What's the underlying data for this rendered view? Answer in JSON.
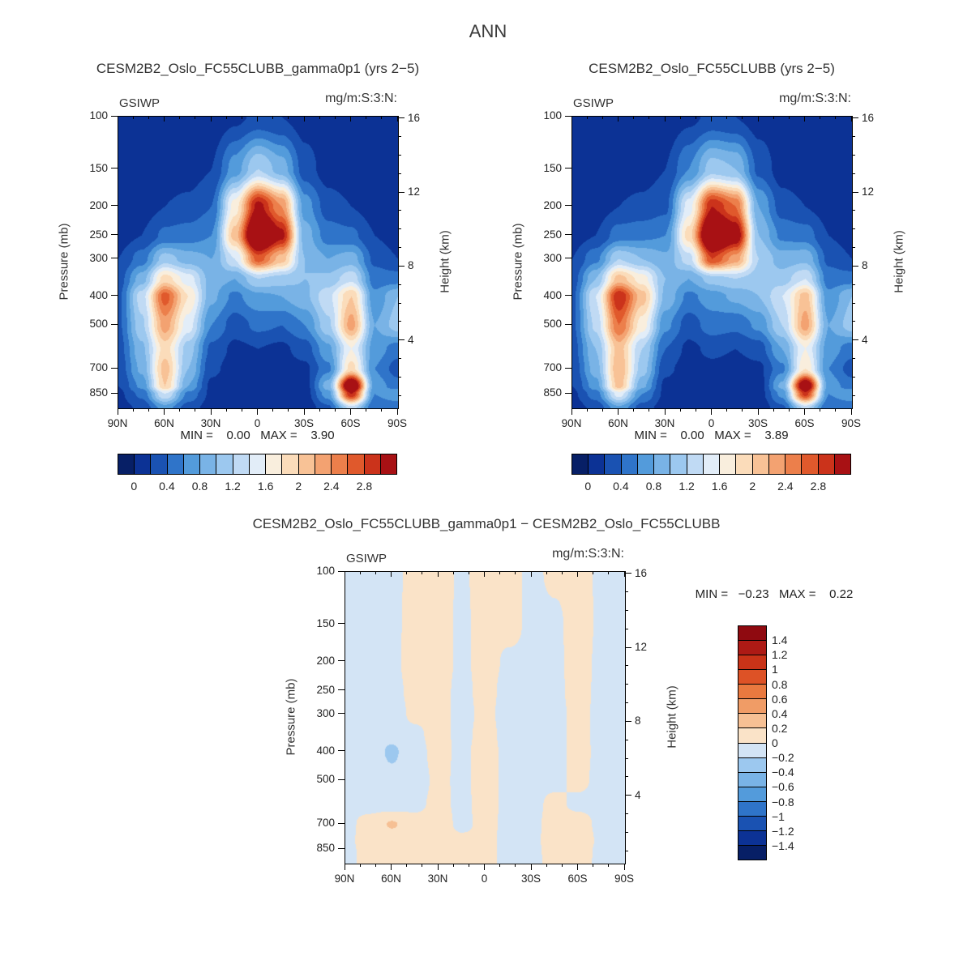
{
  "page": {
    "title": "ANN"
  },
  "palette_fill": [
    "#071f66",
    "#0c3295",
    "#1a52b2",
    "#2f74c9",
    "#539bdb",
    "#79b3e6",
    "#9cc8ef",
    "#c0daf4",
    "#e2edf8",
    "#f9eedd",
    "#fbdcba",
    "#f8c296",
    "#f3a271",
    "#ec7f4b",
    "#e0592c",
    "#cb331b",
    "#a81114"
  ],
  "palette_diff": [
    "#071f66",
    "#0c3295",
    "#1a52b2",
    "#2f74c9",
    "#539bdb",
    "#79b3e6",
    "#9cc8ef",
    "#d3e4f5",
    "#fae3c8",
    "#f6c094",
    "#f09c66",
    "#e9793f",
    "#dd5226",
    "#c93318",
    "#ad1a15",
    "#8f0a10"
  ],
  "panels": [
    {
      "title": "CESM2B2_Oslo_FC55CLUBB_gamma0p1 (yrs 2−5)",
      "variable": "GSIWP",
      "units": "mg/m:S:3:N:",
      "ylabel": "Pressure (mb)",
      "ylabel_right": "Height (km)",
      "minmax": "MIN =    0.00   MAX =    3.90",
      "colorbar_labels": [
        "0",
        "0.4",
        "0.8",
        "1.2",
        "1.6",
        "2",
        "2.4",
        "2.8"
      ]
    },
    {
      "title": "CESM2B2_Oslo_FC55CLUBB (yrs 2−5)",
      "variable": "GSIWP",
      "units": "mg/m:S:3:N:",
      "ylabel": "Pressure (mb)",
      "ylabel_right": "Height (km)",
      "minmax": "MIN =    0.00   MAX =    3.89",
      "colorbar_labels": [
        "0",
        "0.4",
        "0.8",
        "1.2",
        "1.6",
        "2",
        "2.4",
        "2.8"
      ]
    },
    {
      "title": "CESM2B2_Oslo_FC55CLUBB_gamma0p1 − CESM2B2_Oslo_FC55CLUBB",
      "variable": "GSIWP",
      "units": "mg/m:S:3:N:",
      "ylabel": "Pressure (mb)",
      "ylabel_right": "Height (km)",
      "minmax": "MIN =   −0.23   MAX =    0.22",
      "colorbar_labels_v": [
        "1.4",
        "1.2",
        "1",
        "0.8",
        "0.6",
        "0.4",
        "0.2",
        "0",
        "−0.2",
        "−0.4",
        "−0.6",
        "−0.8",
        "−1",
        "−1.2",
        "−1.4"
      ]
    }
  ],
  "axes": {
    "pressure_ticks": [
      {
        "v": 100,
        "l": "100"
      },
      {
        "v": 150,
        "l": "150"
      },
      {
        "v": 200,
        "l": "200"
      },
      {
        "v": 250,
        "l": "250"
      },
      {
        "v": 300,
        "l": "300"
      },
      {
        "v": 400,
        "l": "400"
      },
      {
        "v": 500,
        "l": "500"
      },
      {
        "v": 700,
        "l": "700"
      },
      {
        "v": 850,
        "l": "850"
      }
    ],
    "lat_major_ticks": [
      {
        "v": 90,
        "l": "90N"
      },
      {
        "v": 60,
        "l": "60N"
      },
      {
        "v": 30,
        "l": "30N"
      },
      {
        "v": 0,
        "l": "0"
      },
      {
        "v": -30,
        "l": "30S"
      },
      {
        "v": -60,
        "l": "60S"
      },
      {
        "v": -90,
        "l": "90S"
      }
    ],
    "lat_minor_step": 10,
    "height_major_ticks": [
      {
        "v": 16,
        "l": "16"
      },
      {
        "v": 12,
        "l": "12"
      },
      {
        "v": 8,
        "l": "8"
      },
      {
        "v": 4,
        "l": "4"
      }
    ],
    "height_minor_step": 1
  },
  "chart_data": [
    {
      "type": "heatmap",
      "id": "gamma0p1",
      "title": "CESM2B2_Oslo_FC55CLUBB_gamma0p1 (yrs 2-5)",
      "variable": "GSIWP",
      "units_raw": "mg/m:S:3:N:",
      "x_latitude_deg": [
        90,
        75,
        60,
        45,
        30,
        15,
        0,
        -15,
        -30,
        -45,
        -60,
        -75,
        -90
      ],
      "y_pressure_mb": [
        100,
        150,
        200,
        250,
        300,
        350,
        400,
        500,
        600,
        700,
        800,
        850,
        950
      ],
      "levels": {
        "start": 0,
        "step": 0.2,
        "end": 3.0
      },
      "min": 0.0,
      "max": 3.9,
      "values": [
        [
          0.02,
          0.02,
          0.05,
          0.05,
          0.05,
          0.15,
          0.25,
          0.2,
          0.1,
          0.05,
          0.02,
          0.02,
          0.02
        ],
        [
          0.05,
          0.05,
          0.1,
          0.1,
          0.2,
          0.7,
          1.2,
          0.9,
          0.3,
          0.1,
          0.05,
          0.05,
          0.05
        ],
        [
          0.1,
          0.1,
          0.2,
          0.25,
          0.4,
          1.7,
          3.1,
          2.4,
          0.7,
          0.3,
          0.2,
          0.1,
          0.05
        ],
        [
          0.1,
          0.2,
          0.45,
          0.5,
          0.6,
          2.1,
          3.9,
          3.1,
          0.9,
          0.5,
          0.45,
          0.2,
          0.1
        ],
        [
          0.2,
          0.5,
          1.1,
          0.9,
          0.8,
          1.4,
          2.7,
          2.1,
          1.0,
          0.8,
          0.9,
          0.35,
          0.2
        ],
        [
          0.3,
          0.9,
          1.9,
          1.5,
          0.9,
          0.8,
          1.2,
          1.1,
          1.0,
          1.05,
          1.35,
          0.5,
          0.5
        ],
        [
          0.35,
          1.3,
          2.7,
          1.8,
          0.85,
          0.55,
          0.75,
          0.8,
          0.95,
          1.35,
          2.0,
          0.65,
          1.0
        ],
        [
          0.35,
          1.15,
          2.3,
          1.5,
          0.6,
          0.3,
          0.45,
          0.4,
          0.6,
          1.15,
          2.3,
          0.8,
          1.1
        ],
        [
          0.3,
          0.95,
          1.9,
          1.1,
          0.35,
          0.15,
          0.2,
          0.15,
          0.3,
          0.75,
          1.6,
          0.7,
          0.5
        ],
        [
          0.25,
          0.85,
          2.1,
          1.0,
          0.25,
          0.1,
          0.1,
          0.1,
          0.15,
          0.55,
          1.9,
          0.6,
          0.3
        ],
        [
          0.2,
          0.65,
          2.0,
          0.8,
          0.15,
          0.05,
          0.1,
          0.05,
          0.1,
          0.9,
          3.7,
          0.7,
          0.5
        ],
        [
          0.15,
          0.45,
          1.4,
          0.55,
          0.15,
          0.05,
          0.05,
          0.05,
          0.1,
          0.7,
          3.0,
          0.6,
          0.8
        ],
        [
          0.1,
          0.25,
          0.7,
          0.3,
          0.1,
          0.05,
          0.05,
          0.05,
          0.05,
          0.35,
          1.3,
          0.4,
          0.4
        ]
      ]
    },
    {
      "type": "heatmap",
      "id": "control",
      "title": "CESM2B2_Oslo_FC55CLUBB (yrs 2-5)",
      "variable": "GSIWP",
      "units_raw": "mg/m:S:3:N:",
      "x_latitude_deg": [
        90,
        75,
        60,
        45,
        30,
        15,
        0,
        -15,
        -30,
        -45,
        -60,
        -75,
        -90
      ],
      "y_pressure_mb": [
        100,
        150,
        200,
        250,
        300,
        350,
        400,
        500,
        600,
        700,
        800,
        850,
        950
      ],
      "levels": {
        "start": 0,
        "step": 0.2,
        "end": 3.0
      },
      "min": 0.0,
      "max": 3.89,
      "values": [
        [
          0.02,
          0.02,
          0.05,
          0.05,
          0.05,
          0.15,
          0.25,
          0.2,
          0.1,
          0.05,
          0.02,
          0.02,
          0.02
        ],
        [
          0.05,
          0.05,
          0.1,
          0.1,
          0.2,
          0.6,
          1.1,
          1.0,
          0.35,
          0.1,
          0.05,
          0.05,
          0.05
        ],
        [
          0.1,
          0.1,
          0.2,
          0.25,
          0.35,
          1.5,
          3.0,
          2.6,
          0.8,
          0.3,
          0.2,
          0.1,
          0.05
        ],
        [
          0.1,
          0.2,
          0.5,
          0.55,
          0.6,
          1.9,
          3.89,
          3.3,
          1.0,
          0.55,
          0.5,
          0.2,
          0.1
        ],
        [
          0.2,
          0.55,
          1.2,
          1.0,
          0.85,
          1.3,
          2.8,
          2.3,
          1.2,
          0.9,
          0.95,
          0.35,
          0.2
        ],
        [
          0.3,
          1.0,
          2.1,
          1.7,
          1.0,
          0.8,
          1.1,
          1.2,
          1.1,
          1.1,
          1.4,
          0.5,
          0.5
        ],
        [
          0.35,
          1.4,
          3.0,
          2.1,
          0.95,
          0.55,
          0.7,
          0.85,
          1.0,
          1.4,
          2.1,
          0.65,
          1.0
        ],
        [
          0.35,
          1.25,
          2.6,
          1.7,
          0.65,
          0.3,
          0.5,
          0.45,
          0.65,
          1.2,
          2.3,
          0.8,
          1.1
        ],
        [
          0.3,
          1.0,
          2.1,
          1.2,
          0.4,
          0.15,
          0.25,
          0.2,
          0.3,
          0.8,
          1.6,
          0.7,
          0.5
        ],
        [
          0.25,
          0.9,
          2.2,
          1.1,
          0.25,
          0.1,
          0.15,
          0.1,
          0.15,
          0.55,
          1.8,
          0.6,
          0.3
        ],
        [
          0.2,
          0.7,
          2.1,
          0.85,
          0.15,
          0.05,
          0.1,
          0.05,
          0.1,
          0.85,
          3.5,
          0.7,
          0.5
        ],
        [
          0.15,
          0.5,
          1.5,
          0.6,
          0.15,
          0.05,
          0.05,
          0.05,
          0.1,
          0.65,
          2.9,
          0.6,
          0.8
        ],
        [
          0.1,
          0.25,
          0.75,
          0.3,
          0.1,
          0.05,
          0.05,
          0.05,
          0.05,
          0.35,
          1.25,
          0.4,
          0.4
        ]
      ]
    },
    {
      "type": "heatmap",
      "id": "difference",
      "title": "CESM2B2_Oslo_FC55CLUBB_gamma0p1 - CESM2B2_Oslo_FC55CLUBB",
      "variable": "GSIWP",
      "units_raw": "mg/m:S:3:N:",
      "x_latitude_deg": [
        90,
        75,
        60,
        45,
        30,
        15,
        0,
        -15,
        -30,
        -45,
        -60,
        -75,
        -90
      ],
      "y_pressure_mb": [
        100,
        150,
        200,
        250,
        300,
        350,
        400,
        500,
        600,
        700,
        800,
        850,
        950
      ],
      "levels": {
        "start": -1.4,
        "step": 0.2,
        "end": 1.4
      },
      "min": -0.23,
      "max": 0.22,
      "values": [
        [
          -0.05,
          -0.05,
          -0.05,
          0.06,
          0.1,
          -0.04,
          0.12,
          0.08,
          -0.05,
          0.05,
          0.1,
          -0.05,
          -0.05
        ],
        [
          -0.05,
          -0.06,
          -0.05,
          0.08,
          0.12,
          -0.05,
          0.1,
          0.1,
          -0.06,
          -0.05,
          0.12,
          -0.05,
          -0.05
        ],
        [
          -0.06,
          -0.06,
          -0.05,
          0.1,
          0.14,
          -0.06,
          0.12,
          -0.05,
          -0.06,
          -0.05,
          0.1,
          -0.06,
          -0.05
        ],
        [
          -0.06,
          -0.07,
          -0.06,
          0.06,
          0.1,
          -0.08,
          0.1,
          -0.1,
          -0.07,
          -0.05,
          0.08,
          -0.06,
          -0.05
        ],
        [
          -0.06,
          -0.08,
          -0.1,
          0.05,
          0.12,
          -0.1,
          0.08,
          -0.12,
          -0.08,
          -0.06,
          0.06,
          -0.06,
          -0.05
        ],
        [
          -0.06,
          -0.1,
          -0.15,
          -0.05,
          0.1,
          -0.08,
          0.1,
          -0.1,
          -0.06,
          -0.05,
          0.05,
          -0.05,
          -0.05
        ],
        [
          -0.06,
          -0.1,
          -0.23,
          -0.08,
          0.08,
          -0.06,
          0.12,
          -0.08,
          -0.05,
          -0.06,
          0.06,
          -0.05,
          -0.05
        ],
        [
          -0.06,
          -0.08,
          -0.15,
          -0.1,
          0.05,
          -0.05,
          0.1,
          -0.06,
          -0.05,
          -0.05,
          0.05,
          -0.06,
          -0.05
        ],
        [
          -0.05,
          -0.06,
          -0.1,
          -0.05,
          0.06,
          -0.05,
          0.08,
          -0.05,
          -0.05,
          0.05,
          -0.05,
          -0.06,
          -0.05
        ],
        [
          -0.05,
          0.06,
          0.22,
          0.08,
          0.1,
          -0.05,
          0.06,
          -0.05,
          -0.05,
          0.08,
          0.1,
          -0.06,
          -0.05
        ],
        [
          -0.05,
          0.08,
          0.1,
          0.1,
          0.12,
          0.05,
          0.05,
          -0.05,
          -0.05,
          0.1,
          0.15,
          -0.05,
          -0.05
        ],
        [
          -0.05,
          0.06,
          0.08,
          0.1,
          0.1,
          0.06,
          0.05,
          -0.05,
          -0.05,
          0.08,
          0.1,
          -0.05,
          -0.05
        ],
        [
          -0.05,
          0.05,
          0.06,
          0.08,
          0.08,
          0.05,
          0.05,
          -0.05,
          -0.05,
          0.06,
          0.08,
          -0.05,
          -0.05
        ]
      ]
    }
  ]
}
